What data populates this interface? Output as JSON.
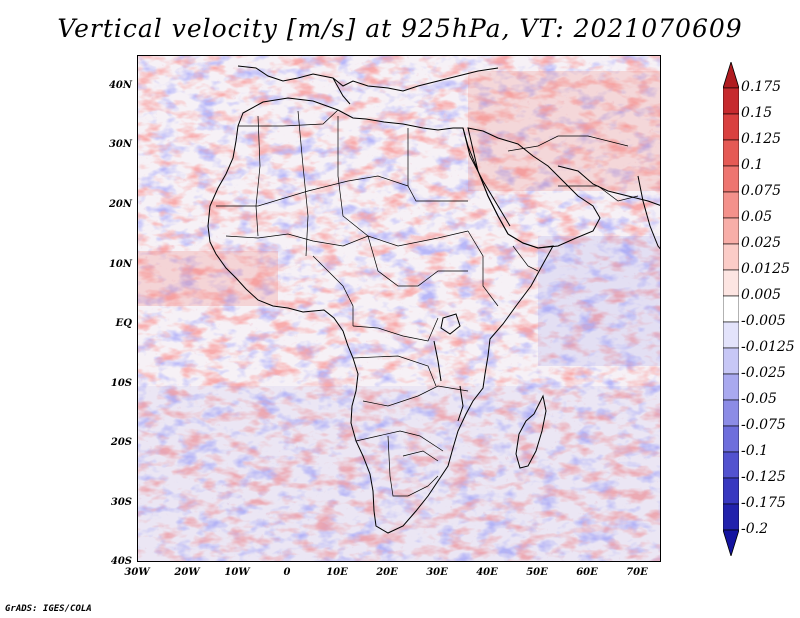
{
  "title": "Vertical velocity [m/s] at 925hPa, VT: 2021070609",
  "credit": "GrADS: IGES/COLA",
  "map": {
    "lon_range": [
      -30,
      75
    ],
    "lat_range": [
      -40,
      45
    ],
    "lat_labels": [
      "40N",
      "30N",
      "20N",
      "10N",
      "EQ",
      "10S",
      "20S",
      "30S",
      "40S"
    ],
    "lon_labels": [
      "30W",
      "20W",
      "10W",
      "0",
      "10E",
      "20E",
      "30E",
      "40E",
      "50E",
      "60E",
      "70E"
    ],
    "field": "vertical velocity",
    "level": "925hPa"
  },
  "colorbar": {
    "labels": [
      "0.175",
      "0.15",
      "0.125",
      "0.1",
      "0.075",
      "0.05",
      "0.025",
      "0.0125",
      "0.005",
      "-0.005",
      "-0.0125",
      "-0.025",
      "-0.05",
      "-0.075",
      "-0.1",
      "-0.125",
      "-0.175",
      "-0.2"
    ],
    "colors": [
      "#b01c20",
      "#c62a2e",
      "#d9403f",
      "#e55a55",
      "#ee7570",
      "#f4918b",
      "#f8aea8",
      "#fbccc7",
      "#fde5e2",
      "#ffffff",
      "#e3e3fb",
      "#c7c7f6",
      "#a9a9ef",
      "#8c8ce6",
      "#6e6edc",
      "#5252cf",
      "#3838c0",
      "#2222ac",
      "#1414a0"
    ]
  }
}
